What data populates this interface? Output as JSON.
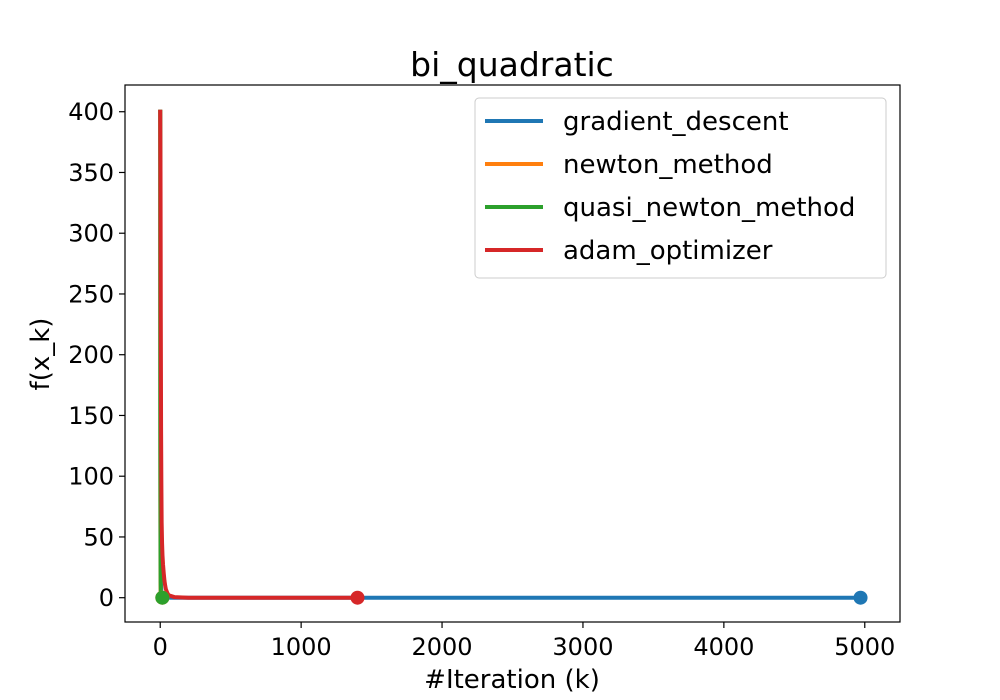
{
  "chart_data": {
    "type": "line",
    "title": "bi_quadratic",
    "xlabel": "#Iteration (k)",
    "ylabel": "f(x_k)",
    "xlim": [
      -250,
      5250
    ],
    "ylim": [
      -20,
      422
    ],
    "xticks": [
      0,
      1000,
      2000,
      3000,
      4000,
      5000
    ],
    "yticks": [
      0,
      50,
      100,
      150,
      200,
      250,
      300,
      350,
      400
    ],
    "grid": false,
    "legend": "top-right",
    "series": [
      {
        "name": "gradient_descent",
        "color": "#1f77b4",
        "x": [
          0,
          1,
          2,
          3,
          5,
          8,
          12,
          20,
          40,
          100,
          500,
          1000,
          2000,
          3000,
          4000,
          4970
        ],
        "y": [
          400,
          160,
          70,
          30,
          12,
          5,
          2,
          0.5,
          0.1,
          0,
          0,
          0,
          0,
          0,
          0,
          0
        ],
        "end_marker": true
      },
      {
        "name": "newton_method",
        "color": "#ff7f0e",
        "x": [
          0,
          1,
          2,
          3,
          4,
          5,
          6,
          8,
          10,
          15
        ],
        "y": [
          400,
          79,
          15.6,
          3.1,
          0.6,
          0.12,
          0.02,
          0,
          0,
          0
        ],
        "end_marker": true
      },
      {
        "name": "quasi_newton_method",
        "color": "#2ca02c",
        "x": [
          0,
          1,
          2,
          3,
          4,
          6,
          8,
          10,
          12,
          15
        ],
        "y": [
          400,
          120,
          40,
          12,
          4,
          1.5,
          0.5,
          0.1,
          0,
          0
        ],
        "end_marker": true
      },
      {
        "name": "adam_optimizer",
        "color": "#d62728",
        "x": [
          0,
          2,
          4,
          6,
          8,
          10,
          13,
          16,
          20,
          25,
          30,
          35,
          40,
          50,
          60,
          100,
          200,
          500,
          1000,
          1400
        ],
        "y": [
          400,
          350,
          230,
          140,
          95,
          62,
          45,
          35,
          27,
          20,
          14,
          10,
          7,
          4,
          2,
          0.5,
          0,
          0,
          0,
          0
        ],
        "end_marker": true
      }
    ]
  }
}
